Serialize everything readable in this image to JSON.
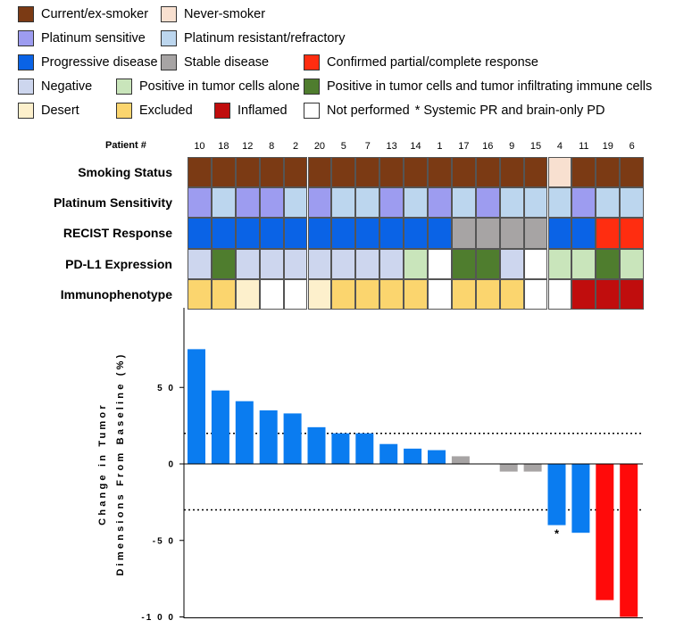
{
  "legend": {
    "rows": [
      [
        {
          "label": "Current/ex-smoker",
          "color": "#7b3a14"
        },
        {
          "label": "Never-smoker",
          "color": "#f8e0d0"
        }
      ],
      [
        {
          "label": "Platinum sensitive",
          "color": "#9d9cf0"
        },
        {
          "label": "Platinum resistant/refractory",
          "color": "#bcd6ee"
        }
      ],
      [
        {
          "label": "Progressive disease",
          "color": "#0a63e6"
        },
        {
          "label": "Stable disease",
          "color": "#a7a4a4"
        },
        {
          "label": "Confirmed partial/complete response",
          "color": "#ff2d10"
        }
      ],
      [
        {
          "label": "Negative",
          "color": "#cdd6ee"
        },
        {
          "label": "Positive in tumor cells alone",
          "color": "#c9e5bb"
        },
        {
          "label": "Positive in tumor cells and tumor infiltrating immune cells",
          "color": "#4f7d2e"
        }
      ],
      [
        {
          "label": "Desert",
          "color": "#fdf0cc"
        },
        {
          "label": "Excluded",
          "color": "#fbd56e"
        },
        {
          "label": "Inflamed",
          "color": "#c00d0d"
        },
        {
          "label": "Not performed",
          "color": "#ffffff"
        }
      ]
    ],
    "note": "* Systemic PR and brain-only PD"
  },
  "heatmap": {
    "patient_title": "Patient #",
    "patients": [
      "10",
      "18",
      "12",
      "8",
      "2",
      "20",
      "5",
      "7",
      "13",
      "14",
      "1",
      "17",
      "16",
      "9",
      "15",
      "4",
      "11",
      "19",
      "6"
    ],
    "row_labels": [
      "Smoking Status",
      "Platinum Sensitivity",
      "RECIST Response",
      "PD-L1 Expression",
      "Immunophenotype"
    ],
    "rows": [
      [
        "ex",
        "ex",
        "ex",
        "ex",
        "ex",
        "ex",
        "ex",
        "ex",
        "ex",
        "ex",
        "ex",
        "ex",
        "ex",
        "ex",
        "ex",
        "never",
        "ex",
        "ex",
        "ex"
      ],
      [
        "ps",
        "pr",
        "ps",
        "ps",
        "pr",
        "ps",
        "pr",
        "pr",
        "ps",
        "pr",
        "ps",
        "pr",
        "ps",
        "pr",
        "pr",
        "pr",
        "ps",
        "pr",
        "pr"
      ],
      [
        "pd",
        "pd",
        "pd",
        "pd",
        "pd",
        "pd",
        "pd",
        "pd",
        "pd",
        "pd",
        "pd",
        "sd",
        "sd",
        "sd",
        "sd",
        "pd",
        "pd",
        "cr",
        "cr"
      ],
      [
        "neg",
        "tii",
        "neg",
        "neg",
        "neg",
        "neg",
        "neg",
        "neg",
        "neg",
        "tc",
        "np",
        "tii",
        "tii",
        "neg",
        "np",
        "tc",
        "tc",
        "tii",
        "tc"
      ],
      [
        "exc",
        "exc",
        "des",
        "np",
        "np",
        "des",
        "exc",
        "exc",
        "exc",
        "exc",
        "np",
        "exc",
        "exc",
        "exc",
        "np",
        "np",
        "inf",
        "inf",
        "inf"
      ]
    ],
    "colors": {
      "ex": "#7b3a14",
      "never": "#f8e0d0",
      "ps": "#9d9cf0",
      "pr": "#bcd6ee",
      "pd": "#0a63e6",
      "sd": "#a7a4a4",
      "cr": "#ff2d10",
      "neg": "#cdd6ee",
      "tc": "#c9e5bb",
      "tii": "#4f7d2e",
      "des": "#fdf0cc",
      "exc": "#fbd56e",
      "inf": "#c00d0d",
      "np": "#ffffff"
    }
  },
  "chart_data": {
    "type": "bar",
    "title": "",
    "xlabel": "",
    "ylabel_lines": [
      "Change in Tumor",
      "Dimensions From Baseline (%)"
    ],
    "categories": [
      "10",
      "18",
      "12",
      "8",
      "2",
      "20",
      "5",
      "7",
      "13",
      "14",
      "1",
      "17",
      "16",
      "9",
      "15",
      "4",
      "11",
      "19",
      "6"
    ],
    "values": [
      75,
      48,
      41,
      35,
      33,
      24,
      20,
      20,
      13,
      10,
      9,
      5,
      0,
      -5,
      -5,
      -40,
      -45,
      -89,
      -100
    ],
    "bar_colors": [
      "#0a7cf0",
      "#0a7cf0",
      "#0a7cf0",
      "#0a7cf0",
      "#0a7cf0",
      "#0a7cf0",
      "#0a7cf0",
      "#0a7cf0",
      "#0a7cf0",
      "#0a7cf0",
      "#0a7cf0",
      "#a7a4a4",
      "#a7a4a4",
      "#a7a4a4",
      "#a7a4a4",
      "#0a7cf0",
      "#0a7cf0",
      "#ff0a0a",
      "#ff0a0a"
    ],
    "ylim": [
      -100,
      100
    ],
    "yticks": [
      50,
      0,
      -50,
      -100
    ],
    "ytick_labels": [
      "5 0",
      "0",
      "-5 0",
      "-1 0 0"
    ],
    "reference_lines": [
      20,
      -30
    ],
    "annotations": [
      {
        "category": "4",
        "text": "*"
      }
    ]
  }
}
